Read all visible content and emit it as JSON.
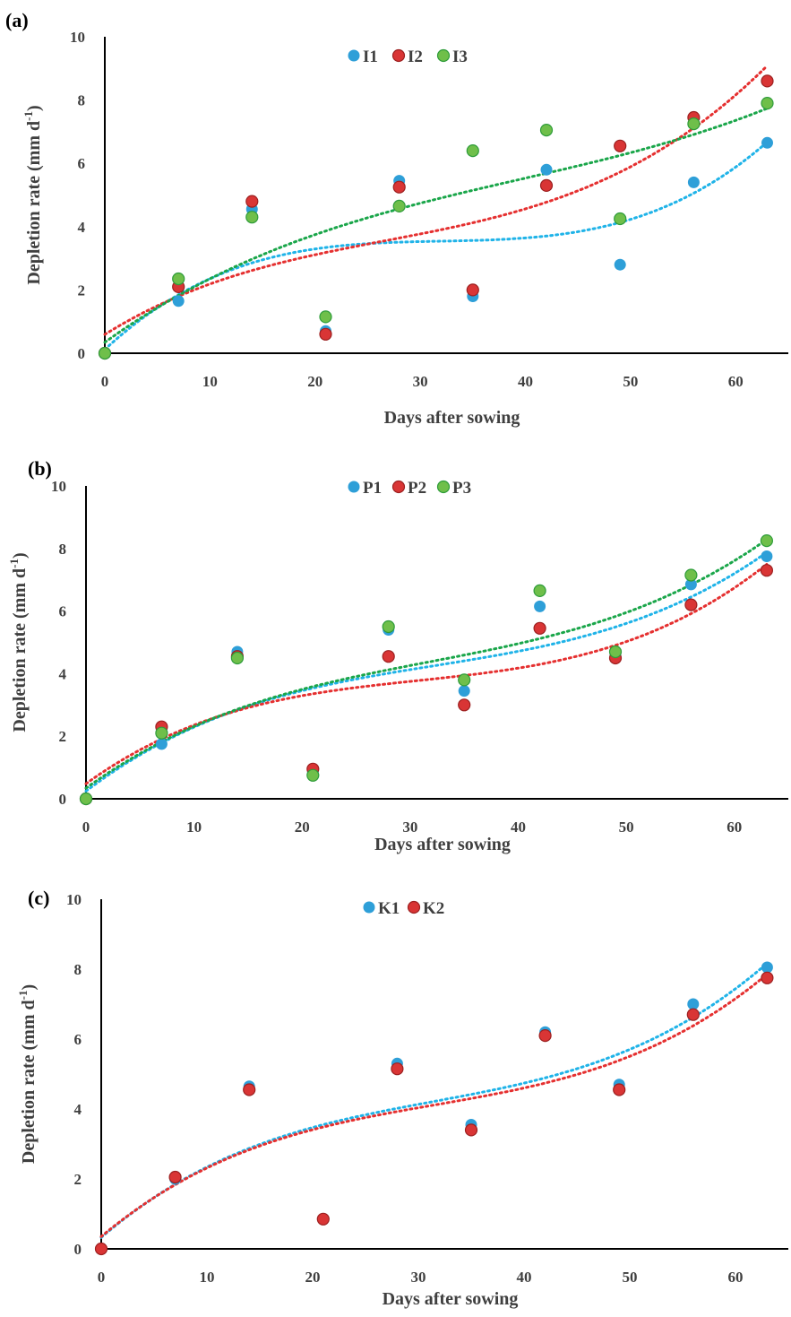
{
  "chart_data": [
    {
      "type": "scatter",
      "panel_label": "(a)",
      "xlabel": "Days after sowing",
      "ylabel": "Depletion rate (mm d",
      "ylabel_sup": "-1",
      "ylabel_close": ")",
      "xlim": [
        0,
        65
      ],
      "ylim": [
        0,
        10
      ],
      "xticks": [
        "0",
        "10",
        "20",
        "30",
        "40",
        "50",
        "60"
      ],
      "yticks": [
        "0",
        "2",
        "4",
        "6",
        "8",
        "10"
      ],
      "legend_position": "top-center",
      "trendline": "polynomial (order 3), dotted",
      "x": [
        0,
        7,
        14,
        21,
        28,
        35,
        42,
        49,
        56,
        63
      ],
      "series": [
        {
          "name": "I1",
          "color": "#2e9fd8",
          "trend_color": "#1fb3e8",
          "values": [
            0.0,
            1.65,
            4.55,
            0.7,
            5.45,
            1.8,
            5.8,
            2.8,
            5.4,
            6.65
          ]
        },
        {
          "name": "I2",
          "color": "#d93535",
          "trend_color": "#e53030",
          "values": [
            0.0,
            2.1,
            4.8,
            0.6,
            5.25,
            2.0,
            5.3,
            6.55,
            7.45,
            8.6
          ]
        },
        {
          "name": "I3",
          "color": "#6fbf4a",
          "trend_color": "#1aa64a",
          "values": [
            0.0,
            2.35,
            4.3,
            1.15,
            4.65,
            6.4,
            7.05,
            4.25,
            7.25,
            7.9
          ]
        }
      ]
    },
    {
      "type": "scatter",
      "panel_label": "(b)",
      "xlabel": "Days after sowing",
      "ylabel": "Depletion rate (mm d",
      "ylabel_sup": "-1",
      "ylabel_close": ")",
      "xlim": [
        0,
        65
      ],
      "ylim": [
        0,
        10
      ],
      "xticks": [
        "0",
        "10",
        "20",
        "30",
        "40",
        "50",
        "60"
      ],
      "yticks": [
        "0",
        "2",
        "4",
        "6",
        "8",
        "10"
      ],
      "legend_position": "top-center",
      "trendline": "polynomial (order 3), dotted",
      "x": [
        0,
        7,
        14,
        21,
        28,
        35,
        42,
        49,
        56,
        63
      ],
      "series": [
        {
          "name": "P1",
          "color": "#2e9fd8",
          "trend_color": "#1fb3e8",
          "values": [
            0.0,
            1.75,
            4.7,
            0.85,
            5.4,
            3.45,
            6.15,
            4.6,
            6.85,
            7.75
          ]
        },
        {
          "name": "P2",
          "color": "#d93535",
          "trend_color": "#e53030",
          "values": [
            0.0,
            2.3,
            4.55,
            0.95,
            4.55,
            3.0,
            5.45,
            4.5,
            6.2,
            7.3
          ]
        },
        {
          "name": "P3",
          "color": "#6fbf4a",
          "trend_color": "#1aa64a",
          "values": [
            0.0,
            2.1,
            4.5,
            0.75,
            5.5,
            3.8,
            6.65,
            4.7,
            7.15,
            8.25
          ]
        }
      ]
    },
    {
      "type": "scatter",
      "panel_label": "(c)",
      "xlabel": "Days after sowing",
      "ylabel": "Depletion rate (mm d",
      "ylabel_sup": "-1",
      "ylabel_close": ")",
      "xlim": [
        0,
        65
      ],
      "ylim": [
        0,
        10
      ],
      "xticks": [
        "0",
        "10",
        "20",
        "30",
        "40",
        "50",
        "60"
      ],
      "yticks": [
        "0",
        "2",
        "4",
        "6",
        "8",
        "10"
      ],
      "legend_position": "top-center",
      "trendline": "polynomial (order 3), dotted",
      "x": [
        0,
        7,
        14,
        21,
        28,
        35,
        42,
        49,
        56,
        63
      ],
      "series": [
        {
          "name": "K1",
          "color": "#2e9fd8",
          "trend_color": "#1fb3e8",
          "values": [
            0.0,
            2.0,
            4.65,
            0.85,
            5.3,
            3.55,
            6.2,
            4.7,
            7.0,
            8.05
          ]
        },
        {
          "name": "K2",
          "color": "#d93535",
          "trend_color": "#e53030",
          "values": [
            0.0,
            2.05,
            4.55,
            0.85,
            5.15,
            3.4,
            6.1,
            4.55,
            6.7,
            7.75
          ]
        }
      ]
    }
  ]
}
